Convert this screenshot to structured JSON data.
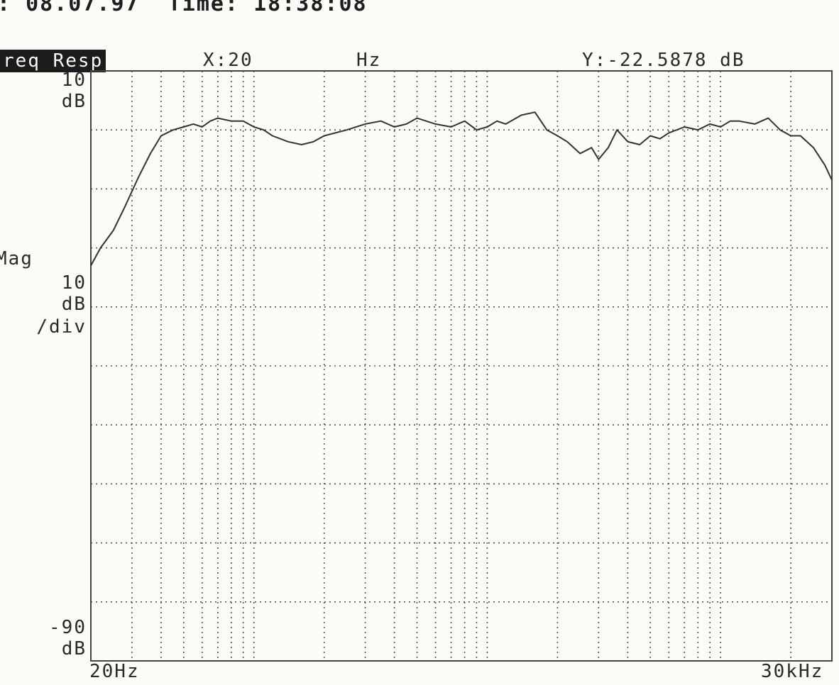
{
  "header": {
    "line": ": 08.07.97  Time: 18:38:08",
    "mode_badge": "req Resp",
    "cursor_x": "X:20",
    "cursor_x_unit": "Hz",
    "cursor_y": "Y:-22.5878 dB"
  },
  "colors": {
    "trace": "#333333",
    "grid": "#555555",
    "background": "#fbfbf8"
  },
  "chart_data": {
    "type": "line",
    "x_scale": "log",
    "xlim": [
      20,
      30000
    ],
    "ylim": [
      -90,
      10
    ],
    "y_per_div": 10,
    "grid": true,
    "ytop_label": [
      "10",
      "dB"
    ],
    "yscale_label": [
      "Mag",
      "10",
      "dB",
      "/div"
    ],
    "ybottom_label": [
      "-90",
      "dB"
    ],
    "x_start_label": "20Hz",
    "x_end_label": "30kHz",
    "series": [
      {
        "x": [
          20,
          22,
          25,
          28,
          32,
          36,
          40,
          45,
          50,
          55,
          60,
          65,
          70,
          80,
          90,
          100,
          110,
          120,
          140,
          160,
          180,
          200,
          250,
          300,
          350,
          400,
          450,
          500,
          600,
          700,
          800,
          900,
          1000,
          1100,
          1200,
          1400,
          1600,
          1800,
          2000,
          2200,
          2500,
          2800,
          3000,
          3300,
          3600,
          4000,
          4500,
          5000,
          5500,
          6000,
          7000,
          8000,
          9000,
          10000,
          11000,
          12000,
          14000,
          16000,
          18000,
          20000,
          22000,
          25000,
          28000,
          30000
        ],
        "y": [
          -23,
          -20,
          -17,
          -13,
          -8,
          -4,
          -1,
          0,
          0.5,
          1,
          0.5,
          1.5,
          2,
          1.5,
          1.5,
          0.5,
          0,
          -1,
          -2,
          -2.5,
          -2,
          -1,
          0,
          1,
          1.5,
          0.5,
          1,
          2,
          1,
          0.5,
          1.5,
          0,
          0.5,
          1.5,
          1,
          2.5,
          3,
          0,
          -1,
          -2,
          -4,
          -3,
          -5,
          -3,
          0,
          -2,
          -2.5,
          -1,
          -1.5,
          -0.5,
          0.5,
          0,
          1,
          0.5,
          1.5,
          1.5,
          1,
          2,
          0,
          -1,
          -1,
          -3,
          -6,
          -8.5
        ]
      }
    ]
  }
}
